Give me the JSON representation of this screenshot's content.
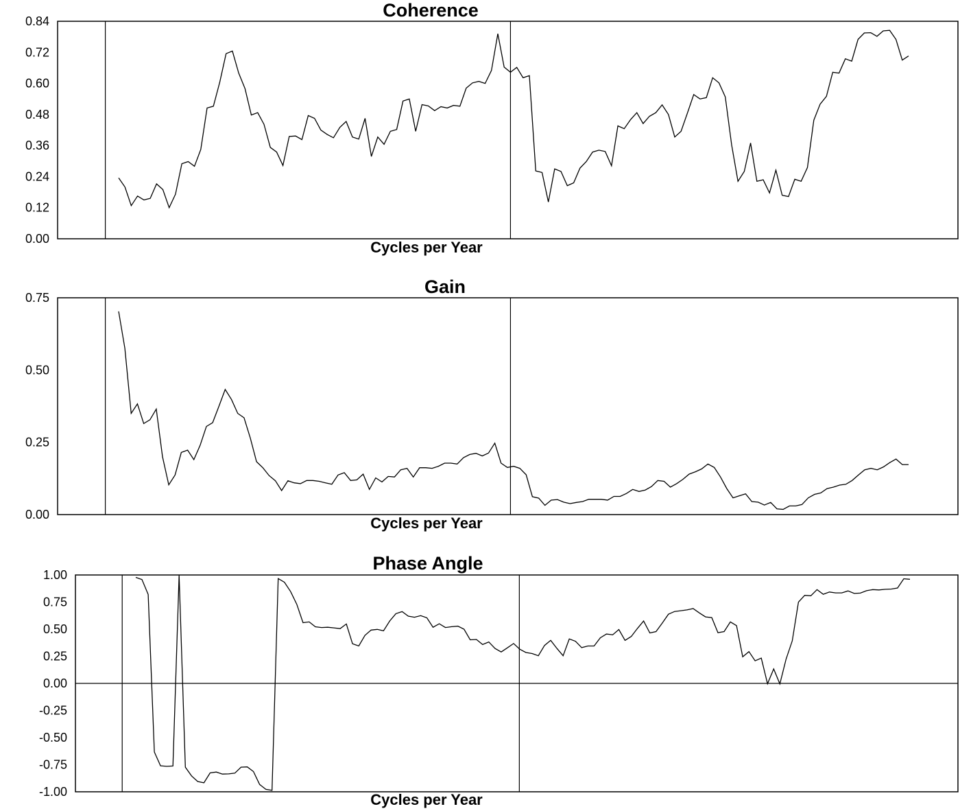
{
  "chart_data": [
    {
      "type": "line",
      "title": "Coherence",
      "xlabel": "Cycles per Year",
      "ylabel": "",
      "ylim": [
        0,
        0.84
      ],
      "yticks": [
        "0.84",
        "0.72",
        "0.60",
        "0.48",
        "0.36",
        "0.24",
        "0.12",
        "0.00"
      ],
      "x_range": [
        0,
        1
      ],
      "vlines": [
        0.053,
        0.503
      ],
      "grid": false,
      "series": [
        {
          "values": [
            0.235,
            0.2,
            0.128,
            0.165,
            0.15,
            0.156,
            0.212,
            0.19,
            0.12,
            0.172,
            0.29,
            0.298,
            0.28,
            0.345,
            0.505,
            0.512,
            0.605,
            0.715,
            0.725,
            0.64,
            0.58,
            0.478,
            0.487,
            0.442,
            0.353,
            0.335,
            0.283,
            0.395,
            0.397,
            0.383,
            0.476,
            0.465,
            0.42,
            0.403,
            0.39,
            0.43,
            0.453,
            0.393,
            0.385,
            0.465,
            0.318,
            0.393,
            0.365,
            0.415,
            0.422,
            0.532,
            0.54,
            0.415,
            0.518,
            0.513,
            0.495,
            0.51,
            0.505,
            0.515,
            0.512,
            0.582,
            0.602,
            0.608,
            0.6,
            0.65,
            0.792,
            0.663,
            0.643,
            0.662,
            0.622,
            0.63,
            0.262,
            0.256,
            0.142,
            0.27,
            0.26,
            0.205,
            0.216,
            0.273,
            0.298,
            0.335,
            0.342,
            0.337,
            0.282,
            0.436,
            0.425,
            0.46,
            0.487,
            0.445,
            0.473,
            0.487,
            0.517,
            0.48,
            0.393,
            0.415,
            0.485,
            0.557,
            0.54,
            0.545,
            0.622,
            0.602,
            0.548,
            0.362,
            0.222,
            0.26,
            0.37,
            0.222,
            0.228,
            0.177,
            0.265,
            0.168,
            0.163,
            0.23,
            0.222,
            0.275,
            0.458,
            0.52,
            0.55,
            0.643,
            0.64,
            0.695,
            0.686,
            0.77,
            0.795,
            0.796,
            0.782,
            0.803,
            0.805,
            0.77,
            0.69,
            0.706
          ]
        }
      ]
    },
    {
      "type": "line",
      "title": "Gain",
      "xlabel": "Cycles per Year",
      "ylabel": "",
      "ylim": [
        0,
        0.75
      ],
      "yticks": [
        "0.75",
        "0.50",
        "0.25",
        "0.00"
      ],
      "x_range": [
        0,
        1
      ],
      "vlines": [
        0.053,
        0.503
      ],
      "grid": false,
      "series": [
        {
          "values": [
            0.703,
            0.575,
            0.35,
            0.383,
            0.315,
            0.328,
            0.365,
            0.2,
            0.103,
            0.137,
            0.215,
            0.223,
            0.19,
            0.24,
            0.305,
            0.318,
            0.375,
            0.433,
            0.398,
            0.35,
            0.335,
            0.265,
            0.183,
            0.162,
            0.135,
            0.117,
            0.083,
            0.117,
            0.11,
            0.107,
            0.118,
            0.118,
            0.115,
            0.11,
            0.105,
            0.137,
            0.145,
            0.118,
            0.12,
            0.14,
            0.087,
            0.127,
            0.113,
            0.132,
            0.13,
            0.155,
            0.16,
            0.13,
            0.162,
            0.162,
            0.16,
            0.167,
            0.178,
            0.178,
            0.175,
            0.197,
            0.208,
            0.212,
            0.203,
            0.213,
            0.247,
            0.178,
            0.163,
            0.167,
            0.16,
            0.138,
            0.062,
            0.057,
            0.032,
            0.05,
            0.052,
            0.043,
            0.038,
            0.042,
            0.045,
            0.053,
            0.053,
            0.053,
            0.05,
            0.063,
            0.063,
            0.073,
            0.087,
            0.08,
            0.085,
            0.097,
            0.118,
            0.115,
            0.095,
            0.107,
            0.122,
            0.14,
            0.148,
            0.158,
            0.175,
            0.163,
            0.13,
            0.09,
            0.058,
            0.065,
            0.072,
            0.045,
            0.043,
            0.033,
            0.042,
            0.02,
            0.018,
            0.03,
            0.03,
            0.035,
            0.058,
            0.07,
            0.075,
            0.09,
            0.095,
            0.102,
            0.105,
            0.118,
            0.137,
            0.155,
            0.16,
            0.155,
            0.165,
            0.18,
            0.192,
            0.173,
            0.173
          ]
        }
      ]
    },
    {
      "type": "line",
      "title": "Phase Angle",
      "xlabel": "Cycles per Year",
      "ylabel": "",
      "ylim": [
        -1,
        1
      ],
      "yticks": [
        "1.00",
        "0.75",
        "0.50",
        "0.25",
        "0.00",
        "-0.25",
        "-0.50",
        "-0.75",
        "-1.00"
      ],
      "x_range": [
        0,
        1
      ],
      "vlines": [
        0.053,
        0.503
      ],
      "hlines": [
        0
      ],
      "grid": false,
      "series": [
        {
          "values": [
            0.978,
            0.958,
            0.82,
            -0.633,
            -0.76,
            -0.765,
            -0.762,
            0.998,
            -0.773,
            -0.853,
            -0.905,
            -0.917,
            -0.826,
            -0.818,
            -0.837,
            -0.835,
            -0.828,
            -0.773,
            -0.77,
            -0.813,
            -0.932,
            -0.977,
            -0.987,
            0.967,
            0.933,
            0.847,
            0.73,
            0.56,
            0.567,
            0.522,
            0.515,
            0.518,
            0.512,
            0.505,
            0.548,
            0.365,
            0.345,
            0.443,
            0.492,
            0.498,
            0.485,
            0.575,
            0.643,
            0.662,
            0.62,
            0.61,
            0.625,
            0.605,
            0.518,
            0.55,
            0.515,
            0.523,
            0.528,
            0.5,
            0.402,
            0.405,
            0.358,
            0.382,
            0.322,
            0.29,
            0.328,
            0.368,
            0.315,
            0.285,
            0.275,
            0.255,
            0.35,
            0.397,
            0.322,
            0.255,
            0.41,
            0.388,
            0.33,
            0.345,
            0.345,
            0.42,
            0.455,
            0.448,
            0.497,
            0.397,
            0.433,
            0.507,
            0.575,
            0.465,
            0.478,
            0.555,
            0.638,
            0.663,
            0.67,
            0.678,
            0.69,
            0.65,
            0.613,
            0.607,
            0.468,
            0.478,
            0.567,
            0.533,
            0.245,
            0.293,
            0.208,
            0.233,
            -0.003,
            0.133,
            -0.005,
            0.225,
            0.393,
            0.75,
            0.812,
            0.808,
            0.865,
            0.822,
            0.843,
            0.835,
            0.835,
            0.853,
            0.83,
            0.833,
            0.855,
            0.865,
            0.862,
            0.868,
            0.87,
            0.88,
            0.965,
            0.96
          ]
        }
      ]
    }
  ]
}
